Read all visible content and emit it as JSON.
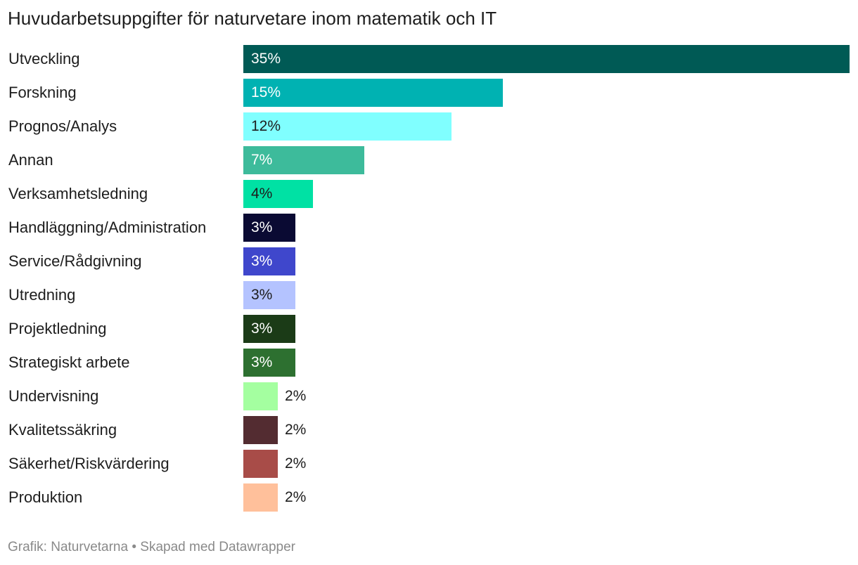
{
  "chart_data": {
    "type": "bar",
    "orientation": "horizontal",
    "title": "Huvudarbetsuppgifter för naturvetare inom matematik och IT",
    "categories": [
      "Utveckling",
      "Forskning",
      "Prognos/Analys",
      "Annan",
      "Verksamhetsledning",
      "Handläggning/Administration",
      "Service/Rådgivning",
      "Utredning",
      "Projektledning",
      "Strategiskt arbete",
      "Undervisning",
      "Kvalitetssäkring",
      "Säkerhet/Riskvärdering",
      "Produktion"
    ],
    "values": [
      35,
      15,
      12,
      7,
      4,
      3,
      3,
      3,
      3,
      3,
      2,
      2,
      2,
      2
    ],
    "value_labels": [
      "35%",
      "15%",
      "12%",
      "7%",
      "4%",
      "3%",
      "3%",
      "3%",
      "3%",
      "3%",
      "2%",
      "2%",
      "2%",
      "2%"
    ],
    "colors": [
      "#005a55",
      "#00b2b2",
      "#80ffff",
      "#3dbb9b",
      "#00e1a4",
      "#0a0a33",
      "#3f47cc",
      "#b4c3ff",
      "#1b3b17",
      "#2d7030",
      "#a4ffa0",
      "#532c31",
      "#a84c48",
      "#ffc09b"
    ],
    "label_colors": [
      "#ffffff",
      "#ffffff",
      "#1d1d1d",
      "#ffffff",
      "#1d1d1d",
      "#ffffff",
      "#ffffff",
      "#1d1d1d",
      "#ffffff",
      "#ffffff",
      "#1d1d1d",
      "#1d1d1d",
      "#1d1d1d",
      "#1d1d1d"
    ],
    "xlim": [
      0,
      35
    ],
    "xlabel": "",
    "ylabel": "",
    "grid": false,
    "legend": "none"
  },
  "footer": "Grafik: Naturvetarna • Skapad med Datawrapper"
}
